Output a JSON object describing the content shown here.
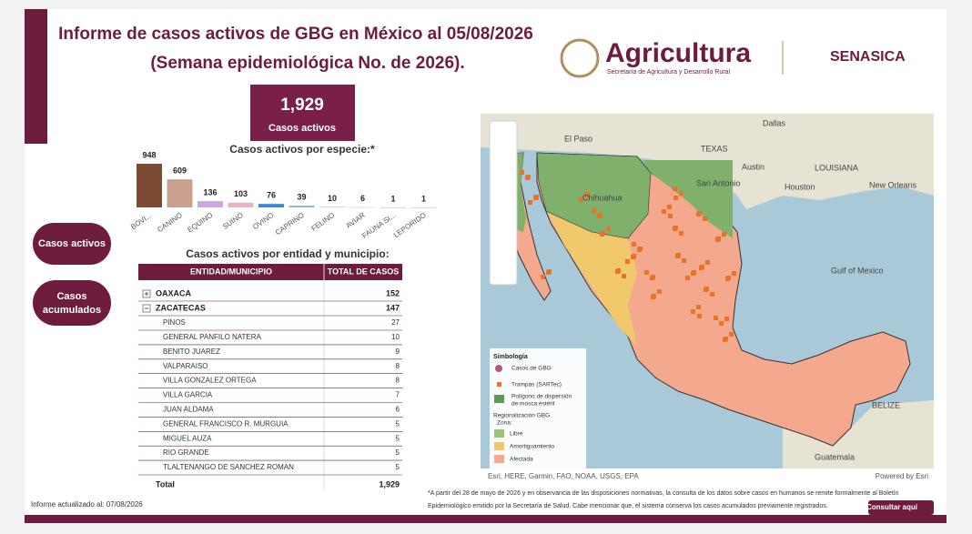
{
  "header": {
    "title": "Informe de casos activos de GBG en México al 05/08/2026",
    "subtitle": "(Semana epidemiológica No. de 2026).",
    "logo_name": "Agricultura",
    "logo_sub": "Secretaría de Agricultura y Desarrollo Rural",
    "logo2": "SENASICA"
  },
  "kpi": {
    "value": "1,929",
    "label": "Casos activos"
  },
  "chart_data": {
    "type": "bar",
    "title": "Casos activos por especie:*",
    "categories": [
      "BOVI...",
      "CANINO",
      "EQUINO",
      "SUINO",
      "OVINO",
      "CAPRINO",
      "FELINO",
      "AVIAR",
      "FAUNA SI...",
      "LEPORIDO"
    ],
    "values": [
      948,
      609,
      136,
      103,
      76,
      39,
      10,
      6,
      1,
      1
    ],
    "colors": [
      "#7b4a32",
      "#c9a08e",
      "#c9a7e0",
      "#e8b4c6",
      "#3a86d8",
      "#8fb5e0",
      "#9bc59d",
      "#e0c56e",
      "#b0b0b0",
      "#d9a07a"
    ]
  },
  "buttons": {
    "active": "Casos activos",
    "accumulated": [
      "Casos",
      "acumulados"
    ],
    "consult": "Consultar aquí"
  },
  "table": {
    "title": "Casos activos por entidad y municipio:",
    "columns": [
      "ENTIDAD/MUNICIPIO",
      "TOTAL DE CASOS"
    ],
    "groups": [
      {
        "name": "OAXACA",
        "total": "152",
        "expanded": false,
        "children": []
      },
      {
        "name": "ZACATECAS",
        "total": "147",
        "expanded": true,
        "children": [
          [
            "PINOS",
            "27"
          ],
          [
            "GENERAL PANFILO NATERA",
            "10"
          ],
          [
            "BENITO JUAREZ",
            "9"
          ],
          [
            "VALPARAISO",
            "8"
          ],
          [
            "VILLA GONZALEZ ORTEGA",
            "8"
          ],
          [
            "VILLA GARCIA",
            "7"
          ],
          [
            "JUAN ALDAMA",
            "6"
          ],
          [
            "GENERAL FRANCISCO R. MURGUIA",
            "5"
          ],
          [
            "MIGUEL AUZA",
            "5"
          ],
          [
            "RIO GRANDE",
            "5"
          ],
          [
            "TLALTENANGO DE SANCHEZ ROMAN",
            "5"
          ]
        ]
      }
    ],
    "total_label": "Total",
    "total": "1,929"
  },
  "map": {
    "places": [
      "Dallas",
      "El Paso",
      "TEXAS",
      "Austin",
      "San Antonio",
      "Houston",
      "LOUISIANA",
      "New Orleans",
      "Chihuahua",
      "Gulf of Mexico",
      "BELIZE",
      "Guatemala"
    ],
    "legend": {
      "title": "Simbología",
      "cases": "Casos de GBG",
      "traps": "Trampas (SARTec)",
      "polygon": [
        "Polígono de dispersión",
        "de mosca estéril"
      ],
      "region": [
        "Regionalización GBG",
        "Zona:"
      ],
      "zones": [
        "Libre",
        "Amortiguamiento",
        "Afectada"
      ]
    },
    "attribution": "Esri, HERE, Garmin, FAO, NOAA, USGS, EPA",
    "powered": "Powered by Esri"
  },
  "footer": {
    "updated": "Informe actualizado al: 07/08/2026",
    "note": [
      "*A partir del 28 de mayo de 2026 y en observancia de las disposiciones normativas, la consulta de los datos sobre casos en humanos se remite formalmente al Boletín",
      "Epidemiológico emitido por la Secretaría de Salud. Cabe mencionar que, el sistema conserva los casos acumulados previamente registrados."
    ]
  }
}
